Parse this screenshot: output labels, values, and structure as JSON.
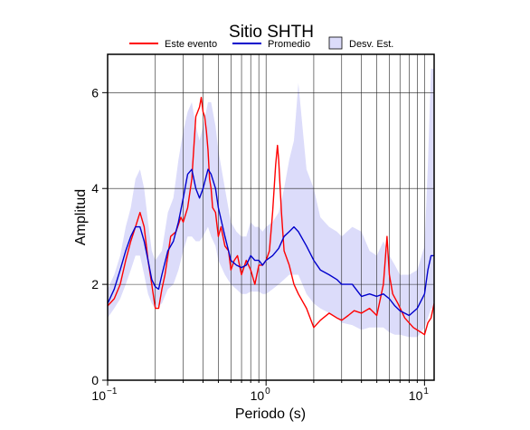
{
  "chart_data": {
    "type": "line",
    "title": "Sitio SHTH",
    "xlabel": "Periodo (s)",
    "ylabel": "Amplitud",
    "x_scale": "log",
    "xlim": [
      0.1,
      11.5
    ],
    "ylim": [
      0,
      6.8
    ],
    "x_ticks": [
      0.1,
      1,
      10
    ],
    "x_tick_labels": [
      {
        "base": "10",
        "exp": "−1"
      },
      {
        "base": "10",
        "exp": "0"
      },
      {
        "base": "10",
        "exp": "1"
      }
    ],
    "y_ticks": [
      0,
      2,
      4,
      6
    ],
    "y_tick_labels": [
      "0",
      "2",
      "4",
      "6"
    ],
    "grid": true,
    "legend": {
      "position": "top",
      "items": [
        {
          "label": "Este evento",
          "kind": "line",
          "color": "#ff0000"
        },
        {
          "label": "Promedio",
          "kind": "line",
          "color": "#0000cc"
        },
        {
          "label": "Desv. Est.",
          "kind": "box",
          "color": "#dcdcfa"
        }
      ]
    },
    "series": [
      {
        "name": "Este evento",
        "color": "#ff0000",
        "x": [
          0.1,
          0.11,
          0.12,
          0.13,
          0.14,
          0.15,
          0.16,
          0.17,
          0.18,
          0.19,
          0.2,
          0.21,
          0.22,
          0.23,
          0.24,
          0.25,
          0.27,
          0.29,
          0.3,
          0.32,
          0.34,
          0.36,
          0.38,
          0.39,
          0.4,
          0.41,
          0.42,
          0.43,
          0.44,
          0.45,
          0.46,
          0.48,
          0.5,
          0.52,
          0.55,
          0.58,
          0.6,
          0.63,
          0.66,
          0.7,
          0.75,
          0.8,
          0.85,
          0.9,
          0.95,
          1.0,
          1.05,
          1.1,
          1.15,
          1.18,
          1.2,
          1.25,
          1.3,
          1.4,
          1.5,
          1.6,
          1.8,
          2.0,
          2.2,
          2.5,
          2.8,
          3.0,
          3.3,
          3.6,
          4.0,
          4.5,
          5.0,
          5.5,
          5.8,
          6.0,
          6.3,
          6.8,
          7.5,
          8.5,
          9.5,
          10.0,
          10.5,
          11.0,
          11.5
        ],
        "y": [
          1.55,
          1.7,
          2.0,
          2.5,
          2.9,
          3.2,
          3.5,
          3.2,
          2.5,
          2.0,
          1.5,
          1.5,
          1.9,
          2.2,
          2.6,
          3.0,
          3.1,
          3.4,
          3.3,
          3.6,
          4.2,
          5.5,
          5.7,
          5.9,
          5.6,
          5.5,
          5.2,
          4.8,
          4.2,
          4.0,
          3.6,
          3.5,
          3.0,
          3.2,
          2.8,
          2.7,
          2.3,
          2.5,
          2.6,
          2.2,
          2.5,
          2.3,
          2.0,
          2.4,
          2.4,
          2.5,
          2.7,
          3.5,
          4.5,
          4.9,
          4.6,
          3.5,
          2.7,
          2.4,
          2.0,
          1.8,
          1.5,
          1.1,
          1.25,
          1.4,
          1.3,
          1.25,
          1.35,
          1.45,
          1.4,
          1.5,
          1.35,
          2.0,
          3.0,
          2.2,
          1.8,
          1.6,
          1.3,
          1.1,
          1.0,
          0.95,
          1.2,
          1.3,
          1.6
        ]
      },
      {
        "name": "Promedio",
        "color": "#0000cc",
        "x": [
          0.1,
          0.11,
          0.12,
          0.13,
          0.14,
          0.15,
          0.16,
          0.17,
          0.18,
          0.19,
          0.2,
          0.21,
          0.22,
          0.24,
          0.26,
          0.28,
          0.3,
          0.32,
          0.34,
          0.36,
          0.38,
          0.4,
          0.43,
          0.45,
          0.48,
          0.5,
          0.55,
          0.6,
          0.65,
          0.7,
          0.75,
          0.8,
          0.85,
          0.9,
          0.95,
          1.0,
          1.1,
          1.2,
          1.3,
          1.4,
          1.5,
          1.6,
          1.8,
          2.0,
          2.2,
          2.5,
          2.8,
          3.0,
          3.5,
          4.0,
          4.5,
          5.0,
          5.5,
          6.0,
          6.5,
          7.0,
          8.0,
          9.0,
          10.0,
          10.5,
          11.0,
          11.5
        ],
        "y": [
          1.6,
          1.9,
          2.3,
          2.7,
          3.0,
          3.2,
          3.2,
          2.9,
          2.5,
          2.1,
          1.95,
          1.9,
          2.2,
          2.7,
          2.9,
          3.3,
          3.8,
          4.3,
          4.4,
          4.0,
          3.8,
          4.0,
          4.4,
          4.3,
          4.0,
          3.6,
          3.0,
          2.5,
          2.4,
          2.35,
          2.4,
          2.6,
          2.5,
          2.5,
          2.4,
          2.5,
          2.6,
          2.75,
          3.0,
          3.1,
          3.2,
          3.1,
          2.8,
          2.5,
          2.3,
          2.2,
          2.1,
          2.0,
          2.0,
          1.75,
          1.8,
          1.75,
          1.8,
          1.7,
          1.55,
          1.45,
          1.35,
          1.5,
          1.8,
          2.3,
          2.6,
          2.6
        ]
      }
    ],
    "band": {
      "name": "Desv. Est.",
      "color": "#dcdcfa",
      "x": [
        0.1,
        0.11,
        0.12,
        0.13,
        0.14,
        0.15,
        0.16,
        0.17,
        0.18,
        0.19,
        0.2,
        0.22,
        0.24,
        0.26,
        0.28,
        0.3,
        0.32,
        0.34,
        0.36,
        0.38,
        0.4,
        0.43,
        0.45,
        0.48,
        0.5,
        0.55,
        0.6,
        0.65,
        0.7,
        0.75,
        0.8,
        0.85,
        0.9,
        0.95,
        1.0,
        1.1,
        1.2,
        1.3,
        1.4,
        1.5,
        1.6,
        1.8,
        2.0,
        2.2,
        2.5,
        2.8,
        3.0,
        3.5,
        4.0,
        4.5,
        5.0,
        5.5,
        6.0,
        6.5,
        7.0,
        8.0,
        9.0,
        10.0,
        10.5,
        11.0,
        11.5
      ],
      "low": [
        1.3,
        1.5,
        1.7,
        2.0,
        2.3,
        2.6,
        2.6,
        2.2,
        1.8,
        1.6,
        1.5,
        1.6,
        1.9,
        2.0,
        2.3,
        2.7,
        3.0,
        3.0,
        2.9,
        2.9,
        3.0,
        3.2,
        3.0,
        2.8,
        2.5,
        2.2,
        2.0,
        1.9,
        1.8,
        1.8,
        1.85,
        1.85,
        1.85,
        1.8,
        1.8,
        1.9,
        2.0,
        2.1,
        2.2,
        2.2,
        2.2,
        1.8,
        1.6,
        1.5,
        1.4,
        1.3,
        1.2,
        1.15,
        1.05,
        1.1,
        1.1,
        1.1,
        1.0,
        0.95,
        0.95,
        0.9,
        0.9,
        1.1,
        1.3,
        1.5,
        1.5
      ],
      "high": [
        1.9,
        2.2,
        2.6,
        3.2,
        3.6,
        4.2,
        4.4,
        4.0,
        3.3,
        2.7,
        2.5,
        2.7,
        3.5,
        3.8,
        4.6,
        5.2,
        5.6,
        5.8,
        5.3,
        5.0,
        5.3,
        5.8,
        5.8,
        5.3,
        4.8,
        4.0,
        3.3,
        3.1,
        3.0,
        3.0,
        3.3,
        3.2,
        3.2,
        3.1,
        3.2,
        3.3,
        3.5,
        4.0,
        4.6,
        5.0,
        6.2,
        4.4,
        4.0,
        3.4,
        3.2,
        3.1,
        3.0,
        3.2,
        3.1,
        2.7,
        2.6,
        2.9,
        2.6,
        2.4,
        2.2,
        2.2,
        2.3,
        2.8,
        4.5,
        6.5,
        6.5
      ]
    }
  }
}
